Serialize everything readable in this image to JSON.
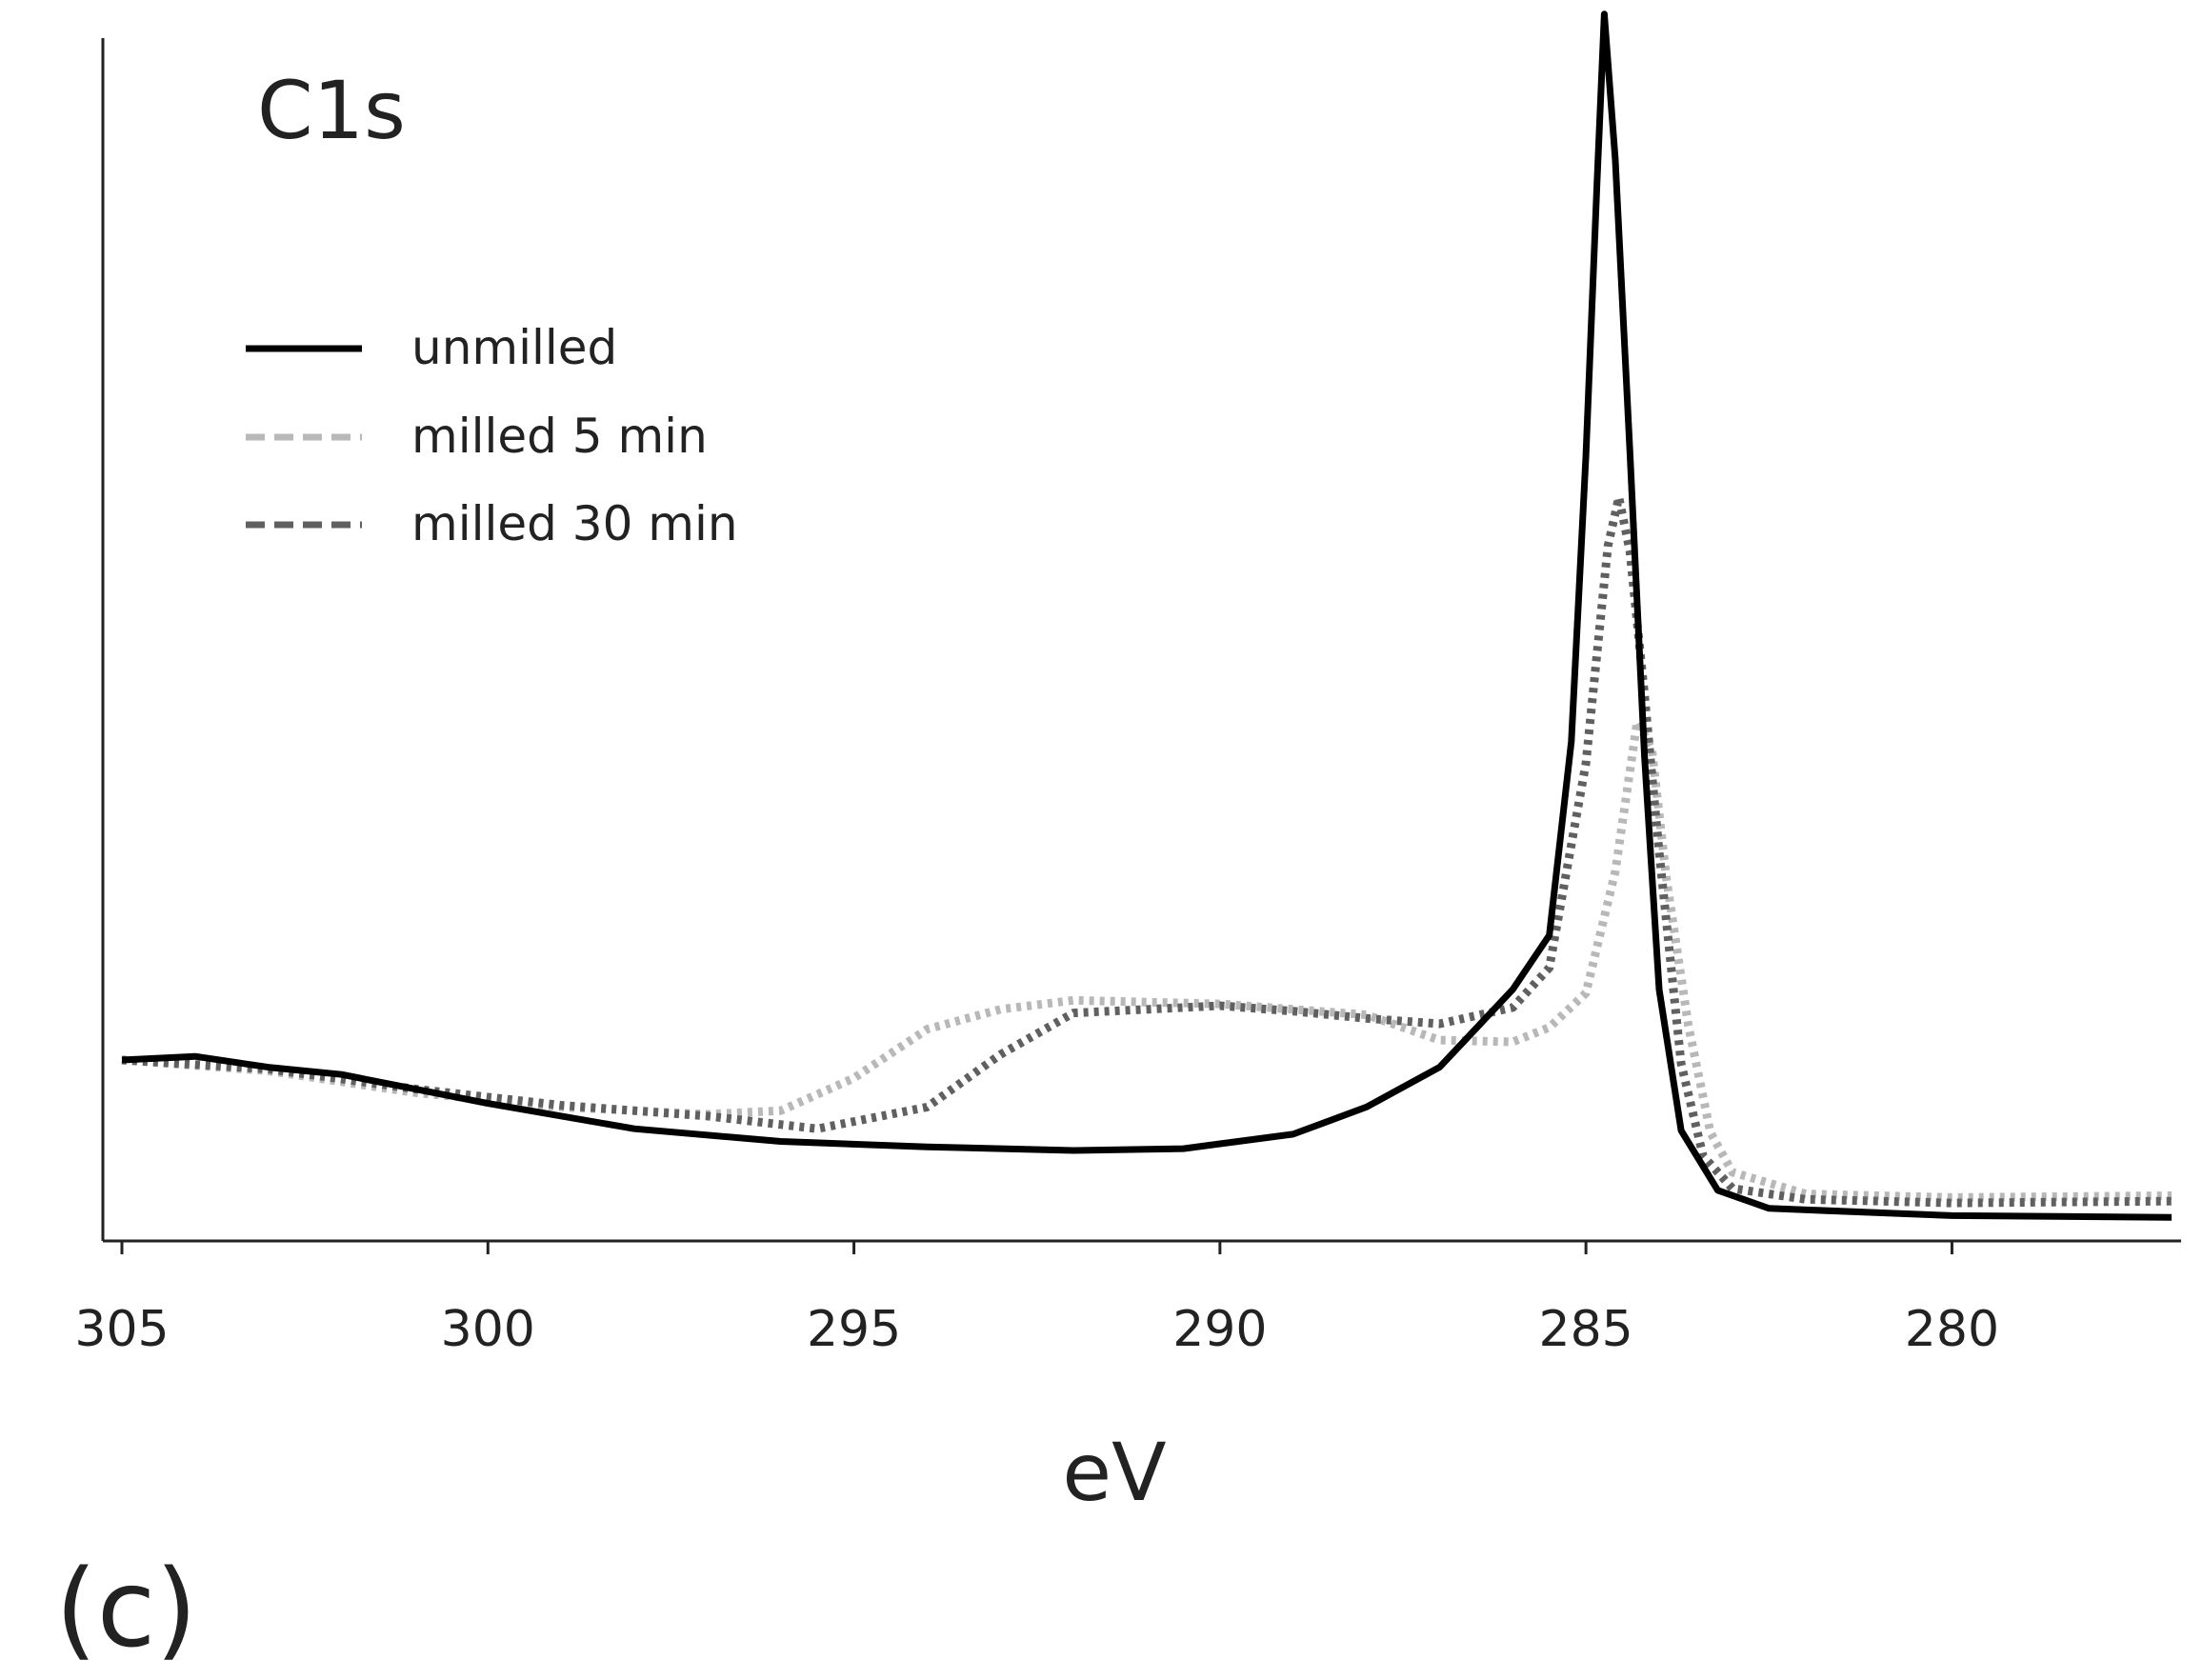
{
  "chart_data": {
    "type": "line",
    "title": "",
    "annotation": "C1s",
    "panel_label": "(c)",
    "xlabel": "eV",
    "ylabel": "",
    "xlim": [
      305,
      277
    ],
    "x_reversed": true,
    "xticks": [
      305,
      300,
      295,
      290,
      285,
      280
    ],
    "xtick_labels": [
      "305",
      "300",
      "295",
      "290",
      "285",
      "280"
    ],
    "y_axis_ticks": false,
    "grid": false,
    "legend_position": "top-left",
    "series": [
      {
        "name": "unmilled",
        "color": "#000000",
        "style": "solid",
        "points": [
          [
            305,
            10
          ],
          [
            304,
            10.2
          ],
          [
            303,
            9.6
          ],
          [
            302,
            9.2
          ],
          [
            300,
            7.6
          ],
          [
            298,
            6.2
          ],
          [
            296,
            5.5
          ],
          [
            294,
            5.2
          ],
          [
            292,
            5.0
          ],
          [
            290.5,
            5.1
          ],
          [
            289,
            5.9
          ],
          [
            288,
            7.4
          ],
          [
            287,
            9.6
          ],
          [
            286,
            13.9
          ],
          [
            285.5,
            16.9
          ],
          [
            285.2,
            27.6
          ],
          [
            285,
            43.4
          ],
          [
            284.85,
            58.4
          ],
          [
            284.75,
            67.8
          ],
          [
            284.6,
            59.8
          ],
          [
            284.4,
            43.6
          ],
          [
            284.2,
            26.8
          ],
          [
            284,
            13.9
          ],
          [
            283.7,
            6.1
          ],
          [
            283.2,
            2.8
          ],
          [
            282.5,
            1.8
          ],
          [
            280,
            1.4
          ],
          [
            277,
            1.3
          ]
        ]
      },
      {
        "name": "milled 5 min",
        "color": "#b8b8b8",
        "style": "dotted",
        "points": [
          [
            305,
            10
          ],
          [
            303,
            9.4
          ],
          [
            301,
            8.2
          ],
          [
            299,
            7.4
          ],
          [
            297,
            7.0
          ],
          [
            296,
            7.2
          ],
          [
            295,
            9.0
          ],
          [
            294,
            11.7
          ],
          [
            293,
            12.8
          ],
          [
            292,
            13.3
          ],
          [
            290,
            13.1
          ],
          [
            288,
            12.5
          ],
          [
            287,
            11.1
          ],
          [
            286,
            11.0
          ],
          [
            285.5,
            11.8
          ],
          [
            285,
            13.7
          ],
          [
            284.6,
            20.4
          ],
          [
            284.3,
            28.7
          ],
          [
            284.1,
            27.2
          ],
          [
            283.9,
            20.0
          ],
          [
            283.6,
            11.9
          ],
          [
            283.3,
            6.0
          ],
          [
            283,
            3.8
          ],
          [
            282,
            2.6
          ],
          [
            280,
            2.4
          ],
          [
            277,
            2.5
          ]
        ]
      },
      {
        "name": "milled 30 min",
        "color": "#606060",
        "style": "dotted",
        "points": [
          [
            305,
            10
          ],
          [
            303,
            9.5
          ],
          [
            301,
            8.4
          ],
          [
            299,
            7.5
          ],
          [
            297,
            6.9
          ],
          [
            295.5,
            6.2
          ],
          [
            294,
            7.4
          ],
          [
            293,
            10.3
          ],
          [
            292,
            12.6
          ],
          [
            290,
            13.0
          ],
          [
            289,
            12.7
          ],
          [
            288,
            12.3
          ],
          [
            287,
            12.0
          ],
          [
            286,
            12.9
          ],
          [
            285.5,
            15.1
          ],
          [
            285,
            26.4
          ],
          [
            284.7,
            38.4
          ],
          [
            284.55,
            41.1
          ],
          [
            284.4,
            38.1
          ],
          [
            284.2,
            30.2
          ],
          [
            284,
            21.5
          ],
          [
            283.7,
            9.8
          ],
          [
            283.4,
            4.7
          ],
          [
            283,
            2.9
          ],
          [
            282,
            2.3
          ],
          [
            280,
            2.1
          ],
          [
            277,
            2.2
          ]
        ]
      }
    ]
  }
}
